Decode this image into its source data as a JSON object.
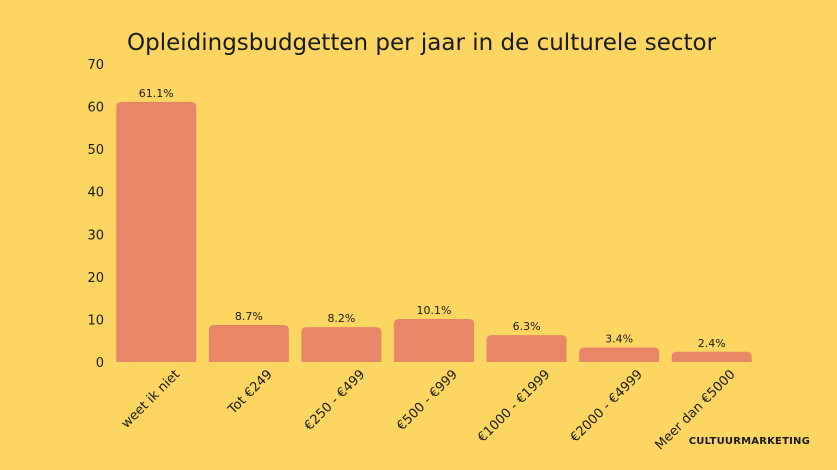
{
  "chart_data": {
    "type": "bar",
    "title": "Opleidingsbudgetten per jaar in de culturele sector",
    "categories": [
      "weet ik niet",
      "Tot €249",
      "€250 - €499",
      "€500 - €999",
      "€1000 - €1999",
      "€2000 - €4999",
      "Meer dan €5000"
    ],
    "values": [
      61.1,
      8.7,
      8.2,
      10.1,
      6.3,
      3.4,
      2.4
    ],
    "data_labels": [
      "61.1%",
      "8.7%",
      "8.2%",
      "10.1%",
      "6.3%",
      "3.4%",
      "2.4%"
    ],
    "yticks": [
      0,
      10,
      20,
      30,
      40,
      50,
      60,
      70
    ],
    "ylim": [
      0,
      70
    ],
    "xlabel": "",
    "ylabel": "",
    "grid": false,
    "legend": "none",
    "bar_color": "#EA8668"
  },
  "brand": {
    "part1": "CULTUUR",
    "part2": "MARKETING"
  },
  "colors": {
    "background": "#FDD662",
    "bar": "#EA8668",
    "text": "#1a1a1a"
  }
}
